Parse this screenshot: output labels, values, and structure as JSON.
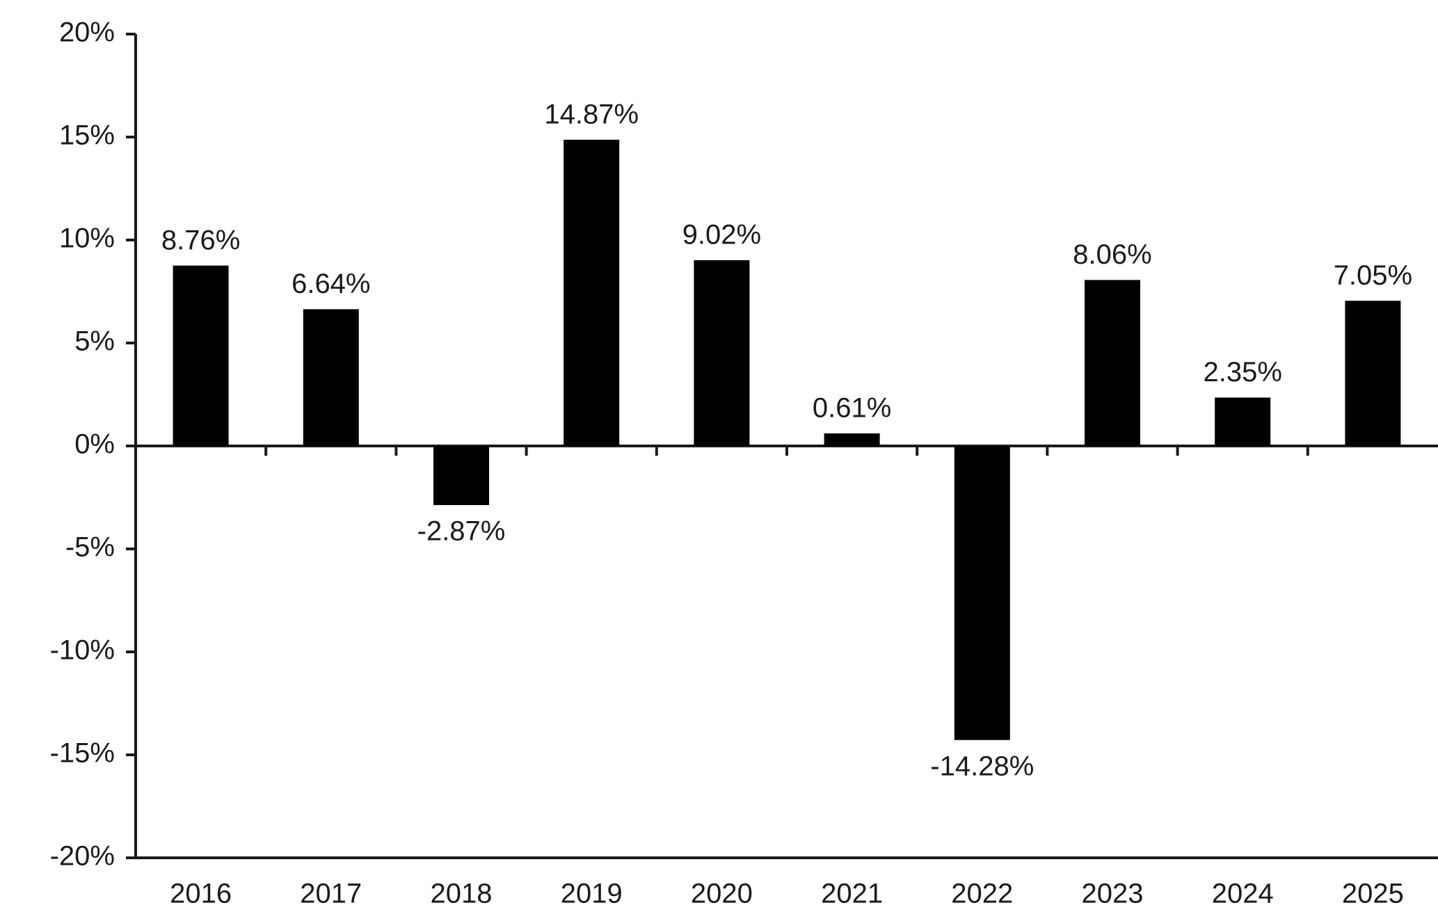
{
  "chart_data": {
    "type": "bar",
    "categories": [
      "2016",
      "2017",
      "2018",
      "2019",
      "2020",
      "2021",
      "2022",
      "2023",
      "2024",
      "2025"
    ],
    "values": [
      8.76,
      6.64,
      -2.87,
      14.87,
      9.02,
      0.61,
      -14.28,
      8.06,
      2.35,
      7.05
    ],
    "value_labels": [
      "8.76%",
      "6.64%",
      "-2.87%",
      "14.87%",
      "9.02%",
      "0.61%",
      "-14.28%",
      "8.06%",
      "2.35%",
      "7.05%"
    ],
    "color": "#000000",
    "ylim": [
      -20,
      20
    ],
    "yticks": [
      {
        "value": -20,
        "label": "-20%"
      },
      {
        "value": -15,
        "label": "-15%"
      },
      {
        "value": -10,
        "label": "-10%"
      },
      {
        "value": -5,
        "label": "-5%"
      },
      {
        "value": 0,
        "label": "0%"
      },
      {
        "value": 5,
        "label": "5%"
      },
      {
        "value": 10,
        "label": "10%"
      },
      {
        "value": 15,
        "label": "15%"
      },
      {
        "value": 20,
        "label": "20%"
      }
    ],
    "grid": false
  }
}
